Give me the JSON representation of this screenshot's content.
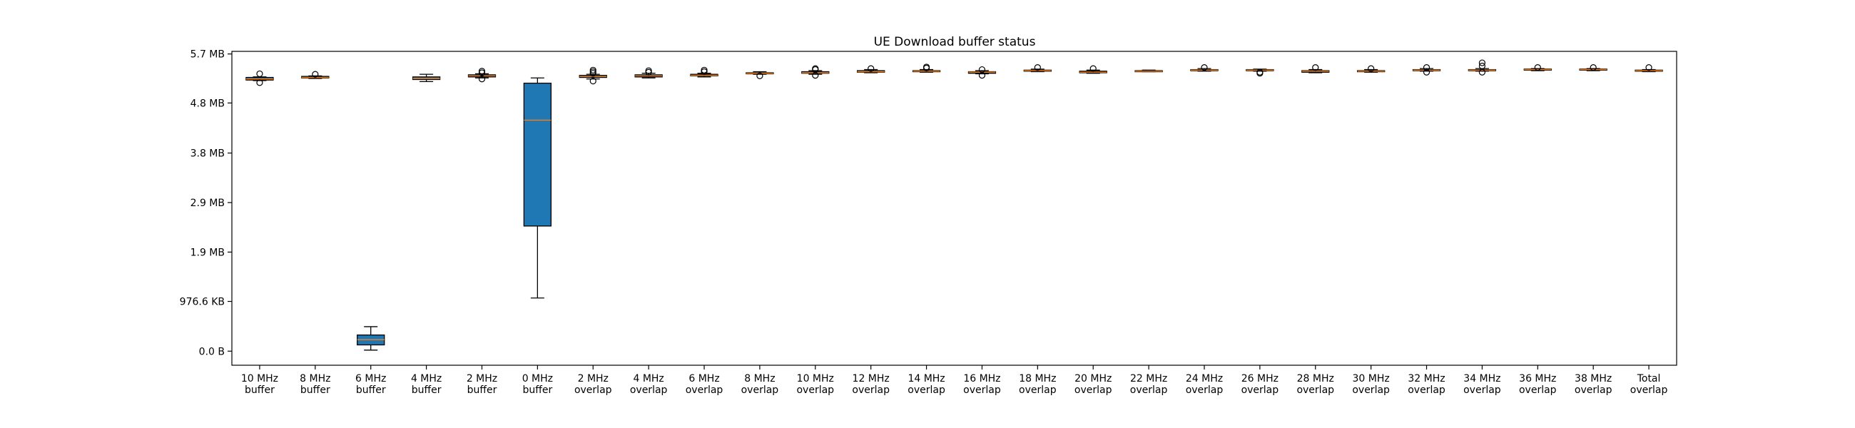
{
  "chart_data": {
    "type": "box",
    "title": "UE Download buffer status",
    "xlabel": "",
    "ylabel": "",
    "ylim_mb": [
      -0.27,
      5.75
    ],
    "y_ticks": [
      {
        "value": 0.0,
        "label": "0.0 B"
      },
      {
        "value": 0.954,
        "label": "976.6 KB"
      },
      {
        "value": 1.9,
        "label": "1.9 MB"
      },
      {
        "value": 2.85,
        "label": "2.9 MB"
      },
      {
        "value": 3.8,
        "label": "3.8 MB"
      },
      {
        "value": 4.76,
        "label": "4.8 MB"
      },
      {
        "value": 5.7,
        "label": "5.7 MB"
      }
    ],
    "colors": {
      "box_fill": "#1f77b4",
      "median": "#ff7f0e",
      "whisker": "#000000"
    },
    "series": [
      {
        "category": "10 MHz\nbuffer",
        "q1": 5.2,
        "median": 5.22,
        "q3": 5.25,
        "whisker_low": 5.19,
        "whisker_high": 5.26,
        "outliers": [
          5.15,
          5.32
        ]
      },
      {
        "category": "8 MHz\nbuffer",
        "q1": 5.24,
        "median": 5.25,
        "q3": 5.27,
        "whisker_low": 5.23,
        "whisker_high": 5.28,
        "outliers": [
          5.31
        ]
      },
      {
        "category": "6 MHz\nbuffer",
        "q1": 0.12,
        "median": 0.22,
        "q3": 0.31,
        "whisker_low": 0.02,
        "whisker_high": 0.47,
        "outliers": []
      },
      {
        "category": "4 MHz\nbuffer",
        "q1": 5.21,
        "median": 5.23,
        "q3": 5.26,
        "whisker_low": 5.17,
        "whisker_high": 5.31,
        "outliers": []
      },
      {
        "category": "2 MHz\nbuffer",
        "q1": 5.26,
        "median": 5.28,
        "q3": 5.3,
        "whisker_low": 5.24,
        "whisker_high": 5.32,
        "outliers": [
          5.22,
          5.34,
          5.37
        ]
      },
      {
        "category": "0 MHz\nbuffer",
        "q1": 2.4,
        "median": 4.43,
        "q3": 5.14,
        "whisker_low": 1.02,
        "whisker_high": 5.24,
        "outliers": []
      },
      {
        "category": "2 MHz\noverlap",
        "q1": 5.25,
        "median": 5.27,
        "q3": 5.29,
        "whisker_low": 5.22,
        "whisker_high": 5.31,
        "outliers": [
          5.18,
          5.33,
          5.36,
          5.39
        ]
      },
      {
        "category": "4 MHz\noverlap",
        "q1": 5.26,
        "median": 5.28,
        "q3": 5.3,
        "whisker_low": 5.24,
        "whisker_high": 5.33,
        "outliers": [
          5.35,
          5.38
        ]
      },
      {
        "category": "6 MHz\noverlap",
        "q1": 5.28,
        "median": 5.29,
        "q3": 5.31,
        "whisker_low": 5.26,
        "whisker_high": 5.33,
        "outliers": [
          5.36,
          5.39
        ]
      },
      {
        "category": "8 MHz\noverlap",
        "q1": 5.32,
        "median": 5.33,
        "q3": 5.34,
        "whisker_low": 5.31,
        "whisker_high": 5.36,
        "outliers": [
          5.28
        ]
      },
      {
        "category": "10 MHz\noverlap",
        "q1": 5.33,
        "median": 5.34,
        "q3": 5.36,
        "whisker_low": 5.31,
        "whisker_high": 5.38,
        "outliers": [
          5.29,
          5.4,
          5.42
        ]
      },
      {
        "category": "12 MHz\noverlap",
        "q1": 5.35,
        "median": 5.36,
        "q3": 5.38,
        "whisker_low": 5.34,
        "whisker_high": 5.4,
        "outliers": [
          5.42
        ]
      },
      {
        "category": "14 MHz\noverlap",
        "q1": 5.36,
        "median": 5.37,
        "q3": 5.38,
        "whisker_low": 5.35,
        "whisker_high": 5.4,
        "outliers": [
          5.43,
          5.45
        ]
      },
      {
        "category": "16 MHz\noverlap",
        "q1": 5.33,
        "median": 5.35,
        "q3": 5.36,
        "whisker_low": 5.32,
        "whisker_high": 5.38,
        "outliers": [
          5.29,
          5.4
        ]
      },
      {
        "category": "18 MHz\noverlap",
        "q1": 5.37,
        "median": 5.38,
        "q3": 5.39,
        "whisker_low": 5.36,
        "whisker_high": 5.41,
        "outliers": [
          5.44
        ]
      },
      {
        "category": "20 MHz\noverlap",
        "q1": 5.34,
        "median": 5.35,
        "q3": 5.37,
        "whisker_low": 5.33,
        "whisker_high": 5.39,
        "outliers": [
          5.42
        ]
      },
      {
        "category": "22 MHz\noverlap",
        "q1": 5.37,
        "median": 5.37,
        "q3": 5.38,
        "whisker_low": 5.36,
        "whisker_high": 5.39,
        "outliers": []
      },
      {
        "category": "24 MHz\noverlap",
        "q1": 5.38,
        "median": 5.39,
        "q3": 5.4,
        "whisker_low": 5.37,
        "whisker_high": 5.42,
        "outliers": [
          5.44
        ]
      },
      {
        "category": "26 MHz\noverlap",
        "q1": 5.38,
        "median": 5.39,
        "q3": 5.4,
        "whisker_low": 5.37,
        "whisker_high": 5.41,
        "outliers": [
          5.33,
          5.35
        ]
      },
      {
        "category": "28 MHz\noverlap",
        "q1": 5.35,
        "median": 5.37,
        "q3": 5.38,
        "whisker_low": 5.34,
        "whisker_high": 5.4,
        "outliers": [
          5.44
        ]
      },
      {
        "category": "30 MHz\noverlap",
        "q1": 5.36,
        "median": 5.37,
        "q3": 5.38,
        "whisker_low": 5.35,
        "whisker_high": 5.4,
        "outliers": [
          5.42
        ]
      },
      {
        "category": "32 MHz\noverlap",
        "q1": 5.38,
        "median": 5.39,
        "q3": 5.4,
        "whisker_low": 5.37,
        "whisker_high": 5.42,
        "outliers": [
          5.35,
          5.44
        ]
      },
      {
        "category": "34 MHz\noverlap",
        "q1": 5.38,
        "median": 5.39,
        "q3": 5.4,
        "whisker_low": 5.37,
        "whisker_high": 5.42,
        "outliers": [
          5.35,
          5.47,
          5.53
        ]
      },
      {
        "category": "36 MHz\noverlap",
        "q1": 5.39,
        "median": 5.4,
        "q3": 5.41,
        "whisker_low": 5.38,
        "whisker_high": 5.42,
        "outliers": [
          5.44
        ]
      },
      {
        "category": "38 MHz\noverlap",
        "q1": 5.39,
        "median": 5.4,
        "q3": 5.41,
        "whisker_low": 5.38,
        "whisker_high": 5.42,
        "outliers": [
          5.44
        ]
      },
      {
        "category": "Total\noverlap",
        "q1": 5.37,
        "median": 5.38,
        "q3": 5.39,
        "whisker_low": 5.36,
        "whisker_high": 5.4,
        "outliers": [
          5.44
        ]
      }
    ]
  }
}
